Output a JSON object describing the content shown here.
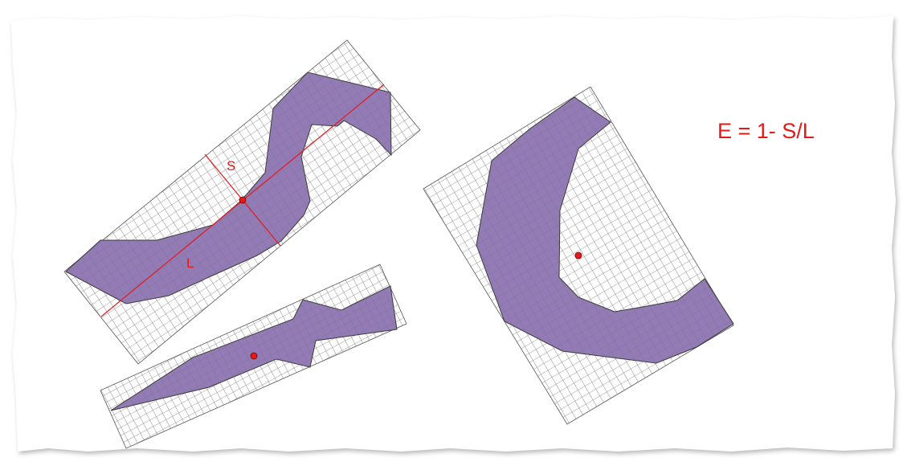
{
  "figure": {
    "formula": "E = 1- S/L",
    "short_axis_label": "S",
    "long_axis_label": "L"
  },
  "colors": {
    "shape_fill": "#8a70b0",
    "shape_stroke": "#3a3a3a",
    "grid_line": "#7d7d7d",
    "annotation": "#e31a1c",
    "paper_shadow": "#c8c8c8",
    "background": "#ffffff"
  },
  "shapes": [
    {
      "name": "s-curve-shape",
      "annotated": true
    },
    {
      "name": "narrow-shape",
      "annotated": false
    },
    {
      "name": "crescent-shape",
      "annotated": false
    }
  ]
}
